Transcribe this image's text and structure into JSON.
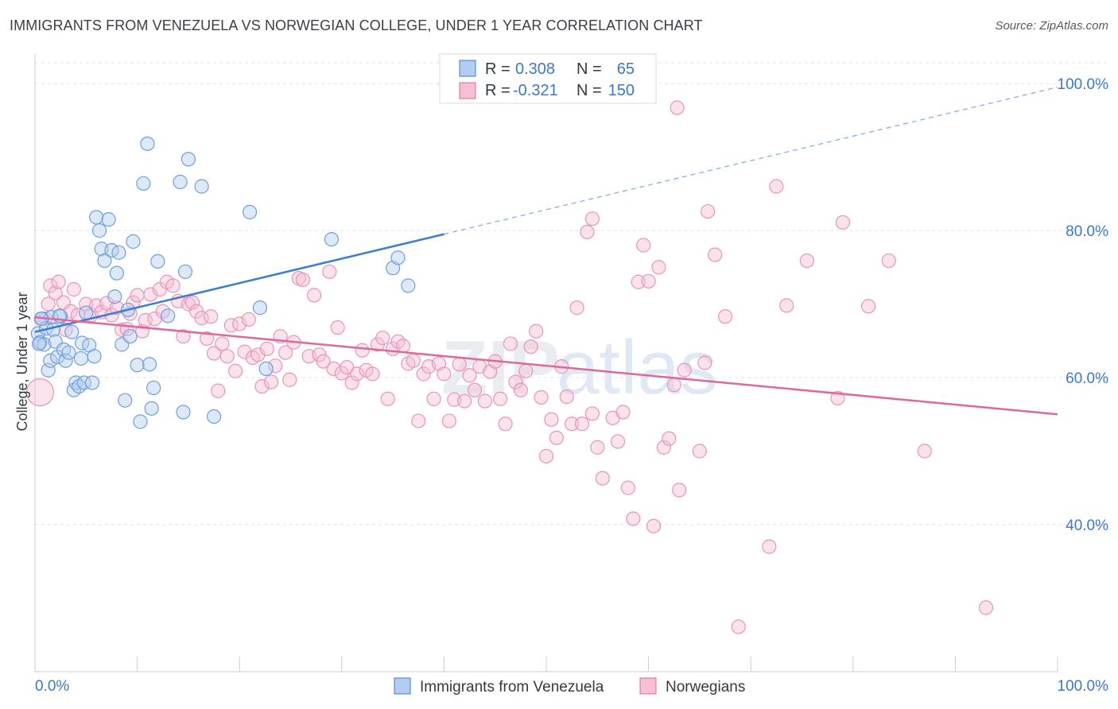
{
  "title": "IMMIGRANTS FROM VENEZUELA VS NORWEGIAN COLLEGE, UNDER 1 YEAR CORRELATION CHART",
  "source": "Source: ZipAtlas.com",
  "watermark": {
    "zip": "ZIP",
    "atlas": "atlas"
  },
  "colors": {
    "blue": "#3b7dd8",
    "blue_fill": "#b3cdf2",
    "pink": "#e0679a",
    "pink_fill": "#f7bfd4",
    "grid": "#dfe3e8",
    "axis_label": "#3d78c8"
  },
  "legend": {
    "rows": [
      {
        "r_label": "R =",
        "r_value": "0.308",
        "n_label": "N =",
        "n_value": "65"
      },
      {
        "r_label": "R =",
        "r_value": "-0.321",
        "n_label": "N =",
        "n_value": "150"
      }
    ]
  },
  "bottom_legend": [
    "Immigrants from Venezuela",
    "Norwegians"
  ],
  "chart_data": {
    "type": "scatter",
    "xlabel": "",
    "ylabel": "College, Under 1 year",
    "xlim": [
      0,
      100
    ],
    "ylim": [
      20,
      104
    ],
    "x_tick_labels": [
      "0.0%",
      "100.0%"
    ],
    "y_tick_labels": [
      "40.0%",
      "60.0%",
      "80.0%",
      "100.0%"
    ],
    "y_ticks": [
      40,
      60,
      80,
      100
    ],
    "grid": true,
    "legend_position": "top-center",
    "series": [
      {
        "name": "Immigrants from Venezuela",
        "color": "#3b7dd8",
        "trend": {
          "x0": 0,
          "y0": 66.2,
          "x1": 40,
          "y1": 79.5,
          "dashed_to_x": 100,
          "dashed_to_y": 99.5
        },
        "points": [
          [
            0.3,
            66
          ],
          [
            0.5,
            64.8
          ],
          [
            0.7,
            68
          ],
          [
            0.9,
            64.5
          ],
          [
            1.1,
            66.7
          ],
          [
            1.3,
            61
          ],
          [
            1.5,
            62.3
          ],
          [
            1.6,
            68.2
          ],
          [
            1.8,
            66.5
          ],
          [
            2.0,
            64.9
          ],
          [
            2.2,
            62.8
          ],
          [
            2.5,
            68.3
          ],
          [
            2.8,
            63.8
          ],
          [
            3.0,
            62.3
          ],
          [
            3.3,
            63.4
          ],
          [
            3.6,
            66.2
          ],
          [
            3.8,
            58.3
          ],
          [
            4.0,
            59.3
          ],
          [
            4.3,
            58.8
          ],
          [
            4.5,
            62.6
          ],
          [
            4.6,
            64.7
          ],
          [
            4.8,
            59.3
          ],
          [
            5.0,
            68.8
          ],
          [
            5.3,
            64.4
          ],
          [
            5.6,
            59.3
          ],
          [
            5.8,
            62.9
          ],
          [
            6.0,
            81.8
          ],
          [
            6.3,
            80
          ],
          [
            6.5,
            77.5
          ],
          [
            6.8,
            75.9
          ],
          [
            7.2,
            81.5
          ],
          [
            7.5,
            77.3
          ],
          [
            7.8,
            71
          ],
          [
            8.0,
            74.2
          ],
          [
            8.2,
            77
          ],
          [
            8.5,
            64.5
          ],
          [
            8.8,
            56.9
          ],
          [
            9.1,
            69.2
          ],
          [
            9.3,
            65.6
          ],
          [
            9.6,
            78.5
          ],
          [
            10.0,
            61.7
          ],
          [
            10.3,
            54
          ],
          [
            10.6,
            86.4
          ],
          [
            11.0,
            91.8
          ],
          [
            11.2,
            61.8
          ],
          [
            11.4,
            55.8
          ],
          [
            12.0,
            75.8
          ],
          [
            13.0,
            68.4
          ],
          [
            14.2,
            86.6
          ],
          [
            14.5,
            55.3
          ],
          [
            14.7,
            74.4
          ],
          [
            15.0,
            89.7
          ],
          [
            16.3,
            86
          ],
          [
            17.5,
            54.7
          ],
          [
            21.0,
            82.5
          ],
          [
            22.0,
            69.5
          ],
          [
            22.6,
            61.2
          ],
          [
            29.0,
            78.8
          ],
          [
            35.0,
            74.9
          ],
          [
            35.5,
            76.3
          ],
          [
            36.5,
            72.5
          ],
          [
            0.4,
            64.6
          ],
          [
            0.6,
            68
          ],
          [
            2.4,
            68.4
          ],
          [
            11.6,
            58.6
          ]
        ]
      },
      {
        "name": "Norwegians",
        "color": "#e0679a",
        "trend": {
          "x0": 0,
          "y0": 68.2,
          "x1": 100,
          "y1": 55.0
        },
        "points": [
          [
            0.5,
            58
          ],
          [
            1.0,
            68
          ],
          [
            1.3,
            70
          ],
          [
            1.5,
            72.5
          ],
          [
            2.0,
            71.5
          ],
          [
            2.3,
            73
          ],
          [
            2.8,
            70.2
          ],
          [
            3.0,
            66.5
          ],
          [
            3.5,
            69
          ],
          [
            3.8,
            72
          ],
          [
            4.2,
            68.5
          ],
          [
            5.0,
            70
          ],
          [
            5.5,
            68.5
          ],
          [
            6.0,
            69.8
          ],
          [
            6.5,
            68.9
          ],
          [
            7.0,
            70.1
          ],
          [
            7.5,
            68.5
          ],
          [
            8.0,
            69.5
          ],
          [
            8.5,
            66.5
          ],
          [
            9.0,
            66.6
          ],
          [
            9.3,
            68.7
          ],
          [
            9.6,
            70.2
          ],
          [
            10.0,
            71.2
          ],
          [
            10.5,
            66.3
          ],
          [
            10.8,
            67.8
          ],
          [
            11.3,
            71.3
          ],
          [
            11.7,
            68
          ],
          [
            12.2,
            72
          ],
          [
            12.5,
            69
          ],
          [
            12.9,
            73
          ],
          [
            13.5,
            72.5
          ],
          [
            14.0,
            70.4
          ],
          [
            14.5,
            65.6
          ],
          [
            15.0,
            70
          ],
          [
            15.4,
            70.2
          ],
          [
            15.8,
            69
          ],
          [
            16.3,
            68.1
          ],
          [
            16.8,
            65.3
          ],
          [
            17.2,
            68.3
          ],
          [
            17.5,
            63.3
          ],
          [
            17.9,
            58.2
          ],
          [
            18.3,
            64.6
          ],
          [
            18.8,
            62.9
          ],
          [
            19.2,
            67.1
          ],
          [
            19.6,
            60.9
          ],
          [
            20.0,
            67.3
          ],
          [
            20.5,
            63.5
          ],
          [
            20.9,
            67.9
          ],
          [
            21.3,
            62.7
          ],
          [
            21.8,
            63.1
          ],
          [
            22.2,
            58.8
          ],
          [
            22.7,
            63.9
          ],
          [
            23.1,
            59.4
          ],
          [
            23.5,
            61.6
          ],
          [
            24.0,
            65.6
          ],
          [
            24.5,
            63.4
          ],
          [
            24.9,
            59.7
          ],
          [
            25.3,
            64.8
          ],
          [
            25.8,
            73.5
          ],
          [
            26.2,
            73.3
          ],
          [
            26.8,
            62.9
          ],
          [
            27.3,
            71.2
          ],
          [
            27.8,
            63.1
          ],
          [
            28.2,
            62.2
          ],
          [
            28.8,
            74.4
          ],
          [
            29.2,
            61.2
          ],
          [
            29.6,
            66.8
          ],
          [
            30.0,
            60.6
          ],
          [
            30.5,
            61.4
          ],
          [
            31.0,
            59.3
          ],
          [
            31.5,
            60.5
          ],
          [
            32.0,
            63.7
          ],
          [
            32.4,
            61
          ],
          [
            33.0,
            60.5
          ],
          [
            33.5,
            64.5
          ],
          [
            34.0,
            65.4
          ],
          [
            34.5,
            57.1
          ],
          [
            35.0,
            63.9
          ],
          [
            35.5,
            64.9
          ],
          [
            36.0,
            64.3
          ],
          [
            36.5,
            61.9
          ],
          [
            37.0,
            62.3
          ],
          [
            37.5,
            54.1
          ],
          [
            38.0,
            60.5
          ],
          [
            38.5,
            61.5
          ],
          [
            39.0,
            57.1
          ],
          [
            39.5,
            61.9
          ],
          [
            40.0,
            60.5
          ],
          [
            40.5,
            54.1
          ],
          [
            41.0,
            57
          ],
          [
            41.5,
            61.8
          ],
          [
            42.0,
            56.8
          ],
          [
            42.5,
            60.3
          ],
          [
            43.0,
            58.3
          ],
          [
            43.5,
            61.5
          ],
          [
            44.0,
            56.8
          ],
          [
            44.5,
            60.8
          ],
          [
            45.0,
            62.2
          ],
          [
            45.5,
            57.1
          ],
          [
            46.0,
            53.7
          ],
          [
            46.5,
            64.6
          ],
          [
            47.0,
            59.4
          ],
          [
            47.5,
            58.3
          ],
          [
            48.0,
            60.9
          ],
          [
            48.5,
            64.2
          ],
          [
            49.0,
            66.3
          ],
          [
            49.5,
            57.3
          ],
          [
            50.0,
            49.3
          ],
          [
            50.5,
            54.3
          ],
          [
            51.0,
            51.8
          ],
          [
            51.5,
            61.5
          ],
          [
            52.0,
            57.4
          ],
          [
            52.5,
            53.7
          ],
          [
            53.0,
            69.5
          ],
          [
            53.5,
            53.7
          ],
          [
            54.0,
            79.8
          ],
          [
            54.5,
            55.1
          ],
          [
            55.0,
            50.5
          ],
          [
            55.5,
            46.3
          ],
          [
            56.5,
            54.5
          ],
          [
            57.0,
            51.3
          ],
          [
            57.5,
            55.3
          ],
          [
            58.0,
            45
          ],
          [
            58.5,
            40.8
          ],
          [
            59.0,
            73
          ],
          [
            59.5,
            78
          ],
          [
            60.0,
            73.1
          ],
          [
            60.5,
            39.8
          ],
          [
            61.0,
            75
          ],
          [
            61.5,
            50.5
          ],
          [
            62.0,
            51.7
          ],
          [
            62.5,
            59
          ],
          [
            63.0,
            44.7
          ],
          [
            63.5,
            61
          ],
          [
            65.0,
            50
          ],
          [
            65.5,
            62
          ],
          [
            65.8,
            82.6
          ],
          [
            66.5,
            76.7
          ],
          [
            67.5,
            68.3
          ],
          [
            68.8,
            26.1
          ],
          [
            71.8,
            37
          ],
          [
            72.5,
            86
          ],
          [
            73.5,
            69.8
          ],
          [
            75.5,
            75.9
          ],
          [
            78.5,
            57.2
          ],
          [
            79.0,
            81.1
          ],
          [
            81.5,
            69.7
          ],
          [
            83.5,
            75.9
          ],
          [
            87.0,
            50
          ],
          [
            93.0,
            28.7
          ],
          [
            62.8,
            96.7
          ],
          [
            54.5,
            81.6
          ]
        ]
      }
    ]
  }
}
